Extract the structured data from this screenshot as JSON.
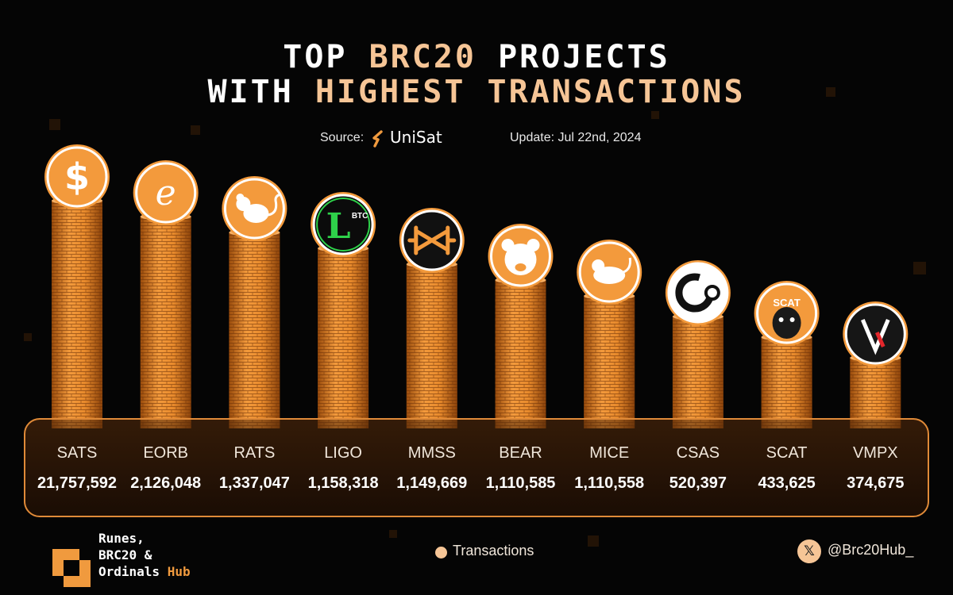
{
  "header": {
    "title_line1_pre": "TOP ",
    "title_line1_hl": "BRC20",
    "title_line1_post": " PROJECTS",
    "title_line2_pre": "WITH ",
    "title_line2_hl": "HIGHEST TRANSACTIONS",
    "source_label": "Source:",
    "source_name": "UniSat",
    "update_label": "Update: Jul 22nd, 2024"
  },
  "colors": {
    "accent": "#f09a3e",
    "highlight_text": "#f6c596",
    "panel_border": "#e08a38",
    "background": "#050505"
  },
  "chart_data": {
    "type": "bar",
    "title": "TOP BRC20 PROJECTS WITH HIGHEST TRANSACTIONS",
    "categories": [
      "SATS",
      "EORB",
      "RATS",
      "LIGO",
      "MMSS",
      "BEAR",
      "MICE",
      "CSAS",
      "SCAT",
      "VMPX"
    ],
    "series": [
      {
        "name": "Transactions",
        "values": [
          21757592,
          2126048,
          1337047,
          1158318,
          1149669,
          1110585,
          1110558,
          520397,
          433625,
          374675
        ]
      }
    ],
    "value_labels": [
      "21,757,592",
      "2,126,048",
      "1,337,047",
      "1,158,318",
      "1,149,669",
      "1,110,585",
      "1,110,558",
      "520,397",
      "433,625",
      "374,675"
    ],
    "icons": [
      "dollar-coin-icon",
      "eorb-coin-icon",
      "rat-coin-icon",
      "ligo-coin-icon",
      "mmss-coin-icon",
      "bear-coin-icon",
      "mice-coin-icon",
      "csas-coin-icon",
      "scat-coin-icon",
      "vmpx-coin-icon"
    ],
    "scale": "rank-ordered, not proportional",
    "legend_position": "bottom-center",
    "grid": false
  },
  "legend": {
    "label": "Transactions"
  },
  "footer": {
    "brand_line1": "Runes,",
    "brand_line2": "BRC20 &",
    "brand_line3": "Ordinals ",
    "brand_hub": "Hub",
    "handle": "@Brc20Hub_",
    "x_icon_glyph": "𝕏"
  },
  "icon_text": {
    "ligo_badge": "BTC",
    "scat_badge": "SCAT"
  }
}
